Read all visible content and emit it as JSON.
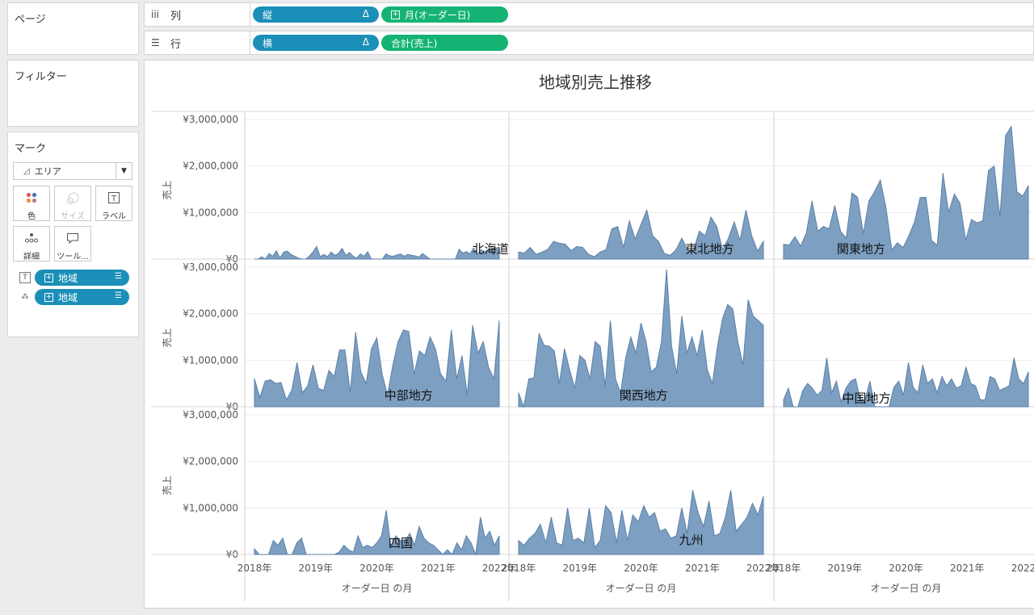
{
  "panels": {
    "pages": {
      "title": "ページ"
    },
    "filters": {
      "title": "フィルター"
    },
    "marks": {
      "title": "マーク",
      "mark_type": "エリア",
      "buttons": [
        {
          "name": "color",
          "label": "色",
          "icon": "color-dots-icon"
        },
        {
          "name": "size",
          "label": "サイズ",
          "icon": "size-circles-icon",
          "disabled": true
        },
        {
          "name": "label",
          "label": "ラベル",
          "icon": "text-t-icon"
        },
        {
          "name": "detail",
          "label": "詳細",
          "icon": "detail-dots-icon"
        },
        {
          "name": "tooltip",
          "label": "ツール...",
          "icon": "speech-bubble-icon"
        }
      ],
      "fields": [
        {
          "type": "label",
          "label": "地域"
        },
        {
          "type": "detail",
          "label": "地域"
        }
      ]
    }
  },
  "shelves": {
    "columns": {
      "label": "列",
      "pills": [
        {
          "label": "縦",
          "color": "#1b8fb7",
          "delta": "Δ"
        },
        {
          "label": "月(オーダー日)",
          "color": "#14b374"
        }
      ]
    },
    "rows": {
      "label": "行",
      "pills": [
        {
          "label": "横",
          "color": "#1b8fb7",
          "delta": "Δ"
        },
        {
          "label": "合計(売上)",
          "color": "#14b374"
        }
      ]
    }
  },
  "chart_data": {
    "type": "area",
    "title": "地域別売上推移",
    "ylabel": "売上",
    "xlabel": "オーダー日 の月",
    "ylim": [
      0,
      3000000
    ],
    "y_ticks": [
      "¥3,000,000",
      "¥2,000,000",
      "¥1,000,000",
      "¥0"
    ],
    "x_ticks": [
      "2018年",
      "2019年",
      "2020年",
      "2021年",
      "2022年"
    ],
    "fill_color": "#7d9fc1",
    "stroke_color": "#5b80a8",
    "series": [
      {
        "name": "北海道",
        "values": [
          0,
          0,
          50000,
          0,
          120000,
          60000,
          180000,
          20000,
          150000,
          170000,
          100000,
          60000,
          20000,
          0,
          0,
          60000,
          150000,
          270000,
          50000,
          100000,
          50000,
          150000,
          80000,
          120000,
          230000,
          80000,
          140000,
          60000,
          20000,
          110000,
          60000,
          160000,
          0,
          0,
          0,
          0,
          110000,
          70000,
          60000,
          90000,
          110000,
          60000,
          100000,
          80000,
          70000,
          40000,
          120000,
          60000,
          0,
          0,
          0,
          0,
          0,
          0,
          0,
          0,
          210000,
          130000,
          160000,
          110000,
          240000,
          100000,
          200000,
          150000,
          200000,
          220000,
          250000,
          170000
        ]
      },
      {
        "name": "東北地方",
        "values": [
          150000,
          130000,
          250000,
          100000,
          150000,
          210000,
          380000,
          340000,
          320000,
          180000,
          270000,
          250000,
          100000,
          50000,
          150000,
          200000,
          650000,
          700000,
          250000,
          820000,
          430000,
          750000,
          1050000,
          500000,
          380000,
          120000,
          80000,
          200000,
          450000,
          200000,
          180000,
          600000,
          500000,
          900000,
          700000,
          200000,
          450000,
          800000,
          400000,
          1050000,
          500000,
          170000,
          380000
        ]
      },
      {
        "name": "関東地方",
        "values": [
          320000,
          300000,
          480000,
          280000,
          560000,
          1250000,
          600000,
          700000,
          650000,
          1150000,
          600000,
          450000,
          1420000,
          1330000,
          550000,
          1250000,
          1450000,
          1700000,
          1100000,
          200000,
          350000,
          250000,
          500000,
          800000,
          1320000,
          1330000,
          400000,
          300000,
          1850000,
          1000000,
          1400000,
          1200000,
          400000,
          850000,
          780000,
          820000,
          1900000,
          2000000,
          900000,
          2650000,
          2850000,
          1450000,
          1350000,
          1580000
        ]
      },
      {
        "name": "中部地方",
        "values": [
          600000,
          200000,
          550000,
          580000,
          500000,
          520000,
          150000,
          350000,
          950000,
          300000,
          450000,
          900000,
          400000,
          350000,
          780000,
          650000,
          1220000,
          1220000,
          300000,
          1600000,
          750000,
          500000,
          1250000,
          1480000,
          700000,
          250000,
          900000,
          1400000,
          1650000,
          1620000,
          700000,
          1200000,
          1100000,
          1500000,
          1250000,
          700000,
          550000,
          1650000,
          600000,
          1100000,
          250000,
          1750000,
          1150000,
          1400000,
          850000,
          600000,
          1850000
        ]
      },
      {
        "name": "関西地方",
        "values": [
          300000,
          0,
          600000,
          620000,
          1570000,
          1320000,
          1300000,
          1200000,
          500000,
          1250000,
          800000,
          400000,
          1100000,
          1000000,
          600000,
          1400000,
          1300000,
          450000,
          1850000,
          600000,
          300000,
          1050000,
          1500000,
          1150000,
          1800000,
          1400000,
          750000,
          850000,
          1400000,
          2950000,
          1300000,
          700000,
          1950000,
          1150000,
          1500000,
          1100000,
          1650000,
          800000,
          500000,
          1300000,
          1900000,
          2200000,
          2100000,
          1400000,
          900000,
          2300000,
          1950000,
          1850000,
          1750000
        ]
      },
      {
        "name": "中国地方",
        "values": [
          150000,
          400000,
          0,
          0,
          350000,
          500000,
          400000,
          250000,
          350000,
          1050000,
          300000,
          550000,
          100000,
          400000,
          550000,
          600000,
          150000,
          150000,
          550000,
          0,
          0,
          0,
          0,
          420000,
          550000,
          250000,
          950000,
          420000,
          300000,
          900000,
          500000,
          600000,
          300000,
          650000,
          450000,
          600000,
          400000,
          450000,
          850000,
          500000,
          450000,
          150000,
          150000,
          650000,
          600000,
          350000,
          400000,
          450000,
          1050000,
          600000,
          500000,
          750000
        ]
      },
      {
        "name": "四国",
        "values": [
          120000,
          0,
          0,
          0,
          300000,
          200000,
          350000,
          0,
          0,
          250000,
          350000,
          0,
          0,
          0,
          0,
          0,
          0,
          0,
          50000,
          200000,
          100000,
          50000,
          400000,
          150000,
          200000,
          150000,
          250000,
          400000,
          950000,
          150000,
          400000,
          300000,
          300000,
          450000,
          200000,
          600000,
          350000,
          250000,
          200000,
          100000,
          0,
          100000,
          0,
          250000,
          100000,
          400000,
          250000,
          0,
          800000,
          350000,
          500000,
          200000,
          400000
        ]
      },
      {
        "name": "九州",
        "values": [
          300000,
          200000,
          350000,
          450000,
          650000,
          250000,
          800000,
          250000,
          200000,
          1000000,
          300000,
          350000,
          250000,
          1000000,
          150000,
          300000,
          1050000,
          900000,
          250000,
          950000,
          300000,
          850000,
          700000,
          1050000,
          800000,
          900000,
          500000,
          550000,
          350000,
          400000,
          1000000,
          450000,
          1380000,
          900000,
          600000,
          1150000,
          400000,
          450000,
          800000,
          1380000,
          500000,
          650000,
          800000,
          1100000,
          850000,
          1250000
        ]
      }
    ]
  }
}
